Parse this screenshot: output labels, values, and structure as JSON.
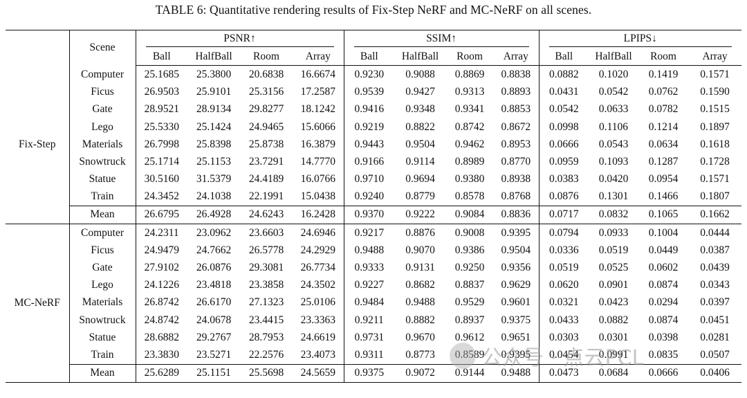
{
  "caption": "TABLE 6: Quantitative rendering results of Fix-Step NeRF and MC-NeRF on all scenes.",
  "header": {
    "scene": "Scene",
    "metrics": [
      "PSNR↑",
      "SSIM↑",
      "LPIPS↓"
    ],
    "sub": [
      "Ball",
      "HalfBall",
      "Room",
      "Array"
    ]
  },
  "groups": [
    {
      "name": "Fix-Step",
      "rows": [
        {
          "scene": "Computer",
          "v": [
            "25.1685",
            "25.3800",
            "20.6838",
            "16.6674",
            "0.9230",
            "0.9088",
            "0.8869",
            "0.8838",
            "0.0882",
            "0.1020",
            "0.1419",
            "0.1571"
          ]
        },
        {
          "scene": "Ficus",
          "v": [
            "26.9503",
            "25.9101",
            "25.3156",
            "17.2587",
            "0.9539",
            "0.9427",
            "0.9313",
            "0.8893",
            "0.0431",
            "0.0542",
            "0.0762",
            "0.1590"
          ]
        },
        {
          "scene": "Gate",
          "v": [
            "28.9521",
            "28.9134",
            "29.8277",
            "18.1242",
            "0.9416",
            "0.9348",
            "0.9341",
            "0.8853",
            "0.0542",
            "0.0633",
            "0.0782",
            "0.1515"
          ]
        },
        {
          "scene": "Lego",
          "v": [
            "25.5330",
            "25.1424",
            "24.9465",
            "15.6066",
            "0.9219",
            "0.8822",
            "0.8742",
            "0.8672",
            "0.0998",
            "0.1106",
            "0.1214",
            "0.1897"
          ]
        },
        {
          "scene": "Materials",
          "v": [
            "26.7998",
            "25.8398",
            "25.8738",
            "16.3879",
            "0.9443",
            "0.9504",
            "0.9462",
            "0.8953",
            "0.0666",
            "0.0543",
            "0.0634",
            "0.1618"
          ]
        },
        {
          "scene": "Snowtruck",
          "v": [
            "25.1714",
            "25.1153",
            "23.7291",
            "14.7770",
            "0.9166",
            "0.9114",
            "0.8989",
            "0.8770",
            "0.0959",
            "0.1093",
            "0.1287",
            "0.1728"
          ]
        },
        {
          "scene": "Statue",
          "v": [
            "30.5160",
            "31.5379",
            "24.4189",
            "16.0766",
            "0.9710",
            "0.9694",
            "0.9380",
            "0.8938",
            "0.0383",
            "0.0420",
            "0.0954",
            "0.1571"
          ]
        },
        {
          "scene": "Train",
          "v": [
            "24.3452",
            "24.1038",
            "22.1991",
            "15.0438",
            "0.9240",
            "0.8779",
            "0.8578",
            "0.8768",
            "0.0876",
            "0.1301",
            "0.1466",
            "0.1807"
          ]
        }
      ],
      "mean": {
        "scene": "Mean",
        "v": [
          "26.6795",
          "26.4928",
          "24.6243",
          "16.2428",
          "0.9370",
          "0.9222",
          "0.9084",
          "0.8836",
          "0.0717",
          "0.0832",
          "0.1065",
          "0.1662"
        ]
      }
    },
    {
      "name": "MC-NeRF",
      "rows": [
        {
          "scene": "Computer",
          "v": [
            "24.2311",
            "23.0962",
            "23.6603",
            "24.6946",
            "0.9217",
            "0.8876",
            "0.9008",
            "0.9395",
            "0.0794",
            "0.0933",
            "0.1004",
            "0.0444"
          ]
        },
        {
          "scene": "Ficus",
          "v": [
            "24.9479",
            "24.7662",
            "26.5778",
            "24.2929",
            "0.9488",
            "0.9070",
            "0.9386",
            "0.9504",
            "0.0336",
            "0.0519",
            "0.0449",
            "0.0387"
          ]
        },
        {
          "scene": "Gate",
          "v": [
            "27.9102",
            "26.0876",
            "29.3081",
            "26.7734",
            "0.9333",
            "0.9131",
            "0.9250",
            "0.9356",
            "0.0519",
            "0.0525",
            "0.0602",
            "0.0439"
          ]
        },
        {
          "scene": "Lego",
          "v": [
            "24.1226",
            "23.4818",
            "23.3858",
            "24.3502",
            "0.9227",
            "0.8682",
            "0.8837",
            "0.9629",
            "0.0620",
            "0.0901",
            "0.0874",
            "0.0343"
          ]
        },
        {
          "scene": "Materials",
          "v": [
            "26.8742",
            "26.6170",
            "27.1323",
            "25.0106",
            "0.9484",
            "0.9488",
            "0.9529",
            "0.9601",
            "0.0321",
            "0.0423",
            "0.0294",
            "0.0397"
          ]
        },
        {
          "scene": "Snowtruck",
          "v": [
            "24.8742",
            "24.0678",
            "23.4415",
            "23.3363",
            "0.9211",
            "0.8882",
            "0.8937",
            "0.9375",
            "0.0433",
            "0.0882",
            "0.0874",
            "0.0451"
          ]
        },
        {
          "scene": "Statue",
          "v": [
            "28.6882",
            "29.2767",
            "28.7953",
            "24.6619",
            "0.9731",
            "0.9670",
            "0.9612",
            "0.9651",
            "0.0303",
            "0.0301",
            "0.0398",
            "0.0281"
          ]
        },
        {
          "scene": "Train",
          "v": [
            "23.3830",
            "23.5271",
            "22.2576",
            "23.4073",
            "0.9311",
            "0.8773",
            "0.8589",
            "0.9395",
            "0.0454",
            "0.0991",
            "0.0835",
            "0.0507"
          ]
        }
      ],
      "mean": {
        "scene": "Mean",
        "v": [
          "25.6289",
          "25.1151",
          "25.5698",
          "24.5659",
          "0.9375",
          "0.9072",
          "0.9144",
          "0.9488",
          "0.0473",
          "0.0684",
          "0.0666",
          "0.0406"
        ]
      }
    }
  ],
  "watermark": "公众号 · 点云PCL"
}
